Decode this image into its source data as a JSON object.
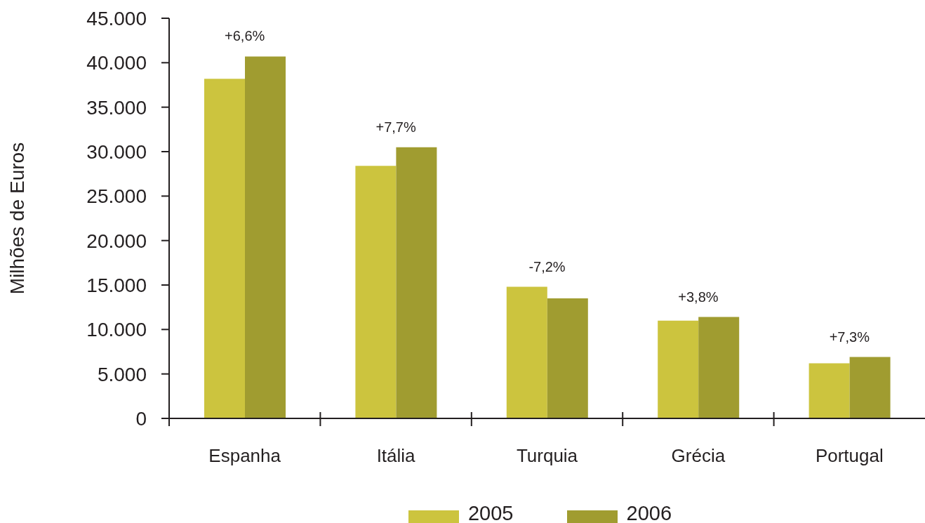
{
  "chart_data": {
    "type": "bar",
    "categories": [
      "Espanha",
      "Itália",
      "Turquia",
      "Grécia",
      "Portugal"
    ],
    "series": [
      {
        "name": "2005",
        "color": "#ccc43e",
        "values": [
          38200,
          28400,
          14800,
          11000,
          6200
        ]
      },
      {
        "name": "2006",
        "color": "#a09c30",
        "values": [
          40700,
          30500,
          13500,
          11400,
          6900
        ]
      }
    ],
    "ylabel": "Milhões de Euros",
    "ylim": [
      0,
      45000
    ],
    "yticks": [
      0,
      {
        "value": 5000,
        "label": "5.000"
      },
      {
        "value": 10000,
        "label": "10.000"
      },
      {
        "value": 15000,
        "label": "15.000"
      },
      {
        "value": 20000,
        "label": "20.000"
      },
      {
        "value": 25000,
        "label": "25.000"
      },
      {
        "value": 30000,
        "label": "30.000"
      },
      {
        "value": 35000,
        "label": "35.000"
      },
      {
        "value": 40000,
        "label": "40.000"
      },
      {
        "value": 45000,
        "label": "45.000"
      }
    ],
    "annotations": [
      "+6,6%",
      "+7,7%",
      "-7,2%",
      "+3,8%",
      "+7,3%"
    ],
    "legend": "bottom"
  }
}
